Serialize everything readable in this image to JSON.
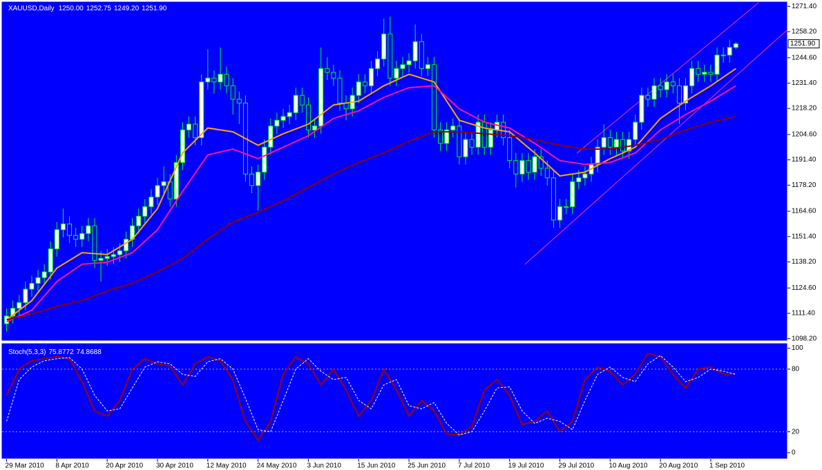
{
  "chart_data": [
    {
      "type": "candlestick",
      "title": "XAUUSD,Daily",
      "last_ohlc_labels": [
        "1250.00",
        "1252.75",
        "1249.20",
        "1251.90"
      ],
      "open": [
        1106,
        1110,
        1114,
        1117,
        1124,
        1127,
        1130,
        1133,
        1145,
        1155,
        1158,
        1152,
        1150,
        1153,
        1157,
        1139,
        1140,
        1141,
        1142,
        1144,
        1150,
        1157,
        1162,
        1167,
        1172,
        1178,
        1180,
        1171,
        1190,
        1207,
        1210,
        1203,
        1232,
        1234,
        1232,
        1236,
        1230,
        1223,
        1221,
        1184,
        1178,
        1185,
        1198,
        1209,
        1212,
        1214,
        1216,
        1225,
        1220,
        1207,
        1209,
        1239,
        1237,
        1234,
        1221,
        1218,
        1225,
        1232,
        1230,
        1239,
        1244,
        1257,
        1234,
        1239,
        1241,
        1243,
        1253,
        1239,
        1241,
        1207,
        1200,
        1207,
        1209,
        1193,
        1202,
        1198,
        1211,
        1198,
        1207,
        1211,
        1203,
        1191,
        1184,
        1191,
        1185,
        1193,
        1187,
        1182,
        1160,
        1167,
        1167,
        1180,
        1182,
        1184,
        1189,
        1198,
        1203,
        1198,
        1202,
        1196,
        1202,
        1211,
        1225,
        1223,
        1230,
        1228,
        1232,
        1230,
        1221,
        1230,
        1239,
        1236,
        1237,
        1236,
        1246,
        1246,
        1250
      ],
      "high": [
        1114,
        1118,
        1121,
        1128,
        1131,
        1134,
        1137,
        1149,
        1159,
        1166,
        1162,
        1156,
        1157,
        1161,
        1161,
        1144,
        1145,
        1146,
        1148,
        1154,
        1161,
        1166,
        1171,
        1176,
        1182,
        1188,
        1184,
        1194,
        1211,
        1214,
        1214,
        1236,
        1249,
        1238,
        1250,
        1240,
        1234,
        1227,
        1225,
        1188,
        1189,
        1202,
        1213,
        1216,
        1218,
        1220,
        1229,
        1229,
        1224,
        1213,
        1250,
        1245,
        1241,
        1238,
        1225,
        1229,
        1236,
        1236,
        1243,
        1248,
        1265,
        1266,
        1243,
        1245,
        1247,
        1262,
        1257,
        1245,
        1245,
        1211,
        1211,
        1213,
        1213,
        1206,
        1206,
        1215,
        1215,
        1211,
        1215,
        1215,
        1207,
        1195,
        1195,
        1195,
        1197,
        1197,
        1191,
        1186,
        1171,
        1171,
        1184,
        1186,
        1188,
        1193,
        1202,
        1210,
        1207,
        1206,
        1206,
        1206,
        1215,
        1229,
        1229,
        1234,
        1234,
        1236,
        1236,
        1234,
        1234,
        1243,
        1243,
        1241,
        1241,
        1250,
        1250,
        1254,
        1252.75
      ],
      "low": [
        1102,
        1106,
        1110,
        1113,
        1120,
        1123,
        1126,
        1129,
        1141,
        1151,
        1148,
        1146,
        1146,
        1149,
        1135,
        1128,
        1136,
        1137,
        1138,
        1140,
        1146,
        1153,
        1158,
        1163,
        1168,
        1174,
        1167,
        1167,
        1186,
        1203,
        1199,
        1199,
        1228,
        1226,
        1228,
        1226,
        1215,
        1210,
        1180,
        1174,
        1165,
        1181,
        1194,
        1205,
        1208,
        1210,
        1212,
        1216,
        1203,
        1203,
        1205,
        1233,
        1230,
        1217,
        1212,
        1214,
        1221,
        1226,
        1226,
        1235,
        1240,
        1230,
        1230,
        1235,
        1237,
        1239,
        1235,
        1235,
        1203,
        1196,
        1196,
        1203,
        1189,
        1189,
        1194,
        1194,
        1194,
        1194,
        1203,
        1199,
        1187,
        1177,
        1180,
        1181,
        1181,
        1183,
        1178,
        1156,
        1156,
        1163,
        1163,
        1176,
        1178,
        1180,
        1185,
        1194,
        1194,
        1194,
        1192,
        1192,
        1198,
        1207,
        1219,
        1219,
        1224,
        1224,
        1226,
        1210,
        1217,
        1226,
        1232,
        1232,
        1232,
        1232,
        1242,
        1242,
        1249.2
      ],
      "close": [
        1110,
        1114,
        1117,
        1124,
        1127,
        1130,
        1133,
        1145,
        1155,
        1158,
        1152,
        1150,
        1153,
        1157,
        1139,
        1140,
        1141,
        1142,
        1144,
        1150,
        1157,
        1162,
        1167,
        1172,
        1178,
        1180,
        1171,
        1190,
        1207,
        1210,
        1203,
        1232,
        1234,
        1232,
        1236,
        1230,
        1223,
        1221,
        1184,
        1178,
        1185,
        1198,
        1209,
        1212,
        1214,
        1216,
        1225,
        1220,
        1207,
        1209,
        1239,
        1237,
        1234,
        1221,
        1218,
        1225,
        1232,
        1230,
        1239,
        1244,
        1257,
        1234,
        1239,
        1241,
        1243,
        1253,
        1239,
        1241,
        1207,
        1200,
        1207,
        1209,
        1193,
        1202,
        1198,
        1211,
        1198,
        1207,
        1211,
        1203,
        1191,
        1184,
        1191,
        1185,
        1193,
        1187,
        1182,
        1160,
        1167,
        1167,
        1180,
        1182,
        1184,
        1189,
        1198,
        1203,
        1198,
        1202,
        1196,
        1202,
        1211,
        1225,
        1223,
        1230,
        1228,
        1232,
        1230,
        1221,
        1230,
        1239,
        1236,
        1237,
        1236,
        1246,
        1246,
        1250,
        1251.9
      ],
      "up_color": "#ffffff",
      "down_color": "#0000ff",
      "wick_color": "#00ff00",
      "overlays": [
        {
          "color": "#ffa500",
          "x": [
            0,
            4,
            8,
            12,
            16,
            20,
            24,
            28,
            32,
            36,
            40,
            44,
            48,
            52,
            56,
            60,
            64,
            68,
            72,
            76,
            80,
            84,
            88,
            92,
            96,
            100,
            104,
            108,
            112,
            116
          ],
          "values": [
            1108,
            1118,
            1135,
            1143,
            1142,
            1150,
            1166,
            1195,
            1208,
            1206,
            1199,
            1205,
            1210,
            1220,
            1222,
            1230,
            1236,
            1232,
            1212,
            1208,
            1206,
            1195,
            1183,
            1185,
            1192,
            1198,
            1213,
            1222,
            1230,
            1239
          ]
        },
        {
          "color": "#ff1493",
          "x": [
            0,
            4,
            8,
            12,
            16,
            20,
            24,
            28,
            32,
            36,
            40,
            44,
            48,
            52,
            56,
            60,
            64,
            68,
            72,
            76,
            80,
            84,
            88,
            92,
            96,
            100,
            104,
            108,
            112,
            116
          ],
          "values": [
            1107,
            1113,
            1128,
            1137,
            1138,
            1143,
            1155,
            1175,
            1194,
            1197,
            1192,
            1198,
            1204,
            1213,
            1217,
            1224,
            1229,
            1230,
            1218,
            1211,
            1208,
            1200,
            1191,
            1189,
            1190,
            1195,
            1207,
            1215,
            1222,
            1230
          ]
        },
        {
          "color": "#8b0000",
          "x": [
            0,
            4,
            8,
            12,
            16,
            20,
            24,
            28,
            32,
            36,
            40,
            44,
            48,
            52,
            56,
            60,
            64,
            68,
            72,
            76,
            80,
            84,
            88,
            92,
            96,
            100,
            104,
            108,
            112,
            116
          ],
          "values": [
            1108,
            1111,
            1115,
            1118,
            1123,
            1127,
            1133,
            1140,
            1150,
            1159,
            1164,
            1170,
            1177,
            1184,
            1190,
            1195,
            1201,
            1206,
            1206,
            1205,
            1204,
            1202,
            1199,
            1197,
            1197,
            1199,
            1202,
            1207,
            1211,
            1214
          ]
        }
      ],
      "xlim": [
        -0.5,
        124.2
      ],
      "ylim": [
        1097,
        1274
      ],
      "yticks": [
        {
          "value": 1271.4,
          "label": "1271.40"
        },
        {
          "value": 1258.2,
          "label": "1258.20"
        },
        {
          "value": 1244.6,
          "label": "1244.60"
        },
        {
          "value": 1231.4,
          "label": "1231.40"
        },
        {
          "value": 1218.2,
          "label": "1218.20"
        },
        {
          "value": 1204.6,
          "label": "1204.60"
        },
        {
          "value": 1191.4,
          "label": "1191.40"
        },
        {
          "value": 1178.2,
          "label": "1178.20"
        },
        {
          "value": 1164.6,
          "label": "1164.60"
        },
        {
          "value": 1151.4,
          "label": "1151.40"
        },
        {
          "value": 1138.2,
          "label": "1138.20"
        },
        {
          "value": 1124.6,
          "label": "1124.60"
        },
        {
          "value": 1111.4,
          "label": "1111.40"
        },
        {
          "value": 1098.2,
          "label": "1098.20"
        }
      ]
    },
    {
      "type": "line",
      "title": "Stoch(5,3,3)",
      "series": [
        {
          "color": "#a00000",
          "dash": false,
          "x": [
            0,
            2,
            4,
            6,
            8,
            10,
            12,
            14,
            16,
            18,
            20,
            22,
            24,
            26,
            28,
            30,
            32,
            34,
            36,
            38,
            40,
            42,
            44,
            46,
            48,
            50,
            52,
            54,
            56,
            58,
            60,
            62,
            64,
            66,
            68,
            70,
            72,
            74,
            76,
            78,
            80,
            82,
            84,
            86,
            88,
            90,
            92,
            94,
            96,
            98,
            100,
            102,
            104,
            106,
            108,
            110,
            112,
            114,
            116
          ],
          "values": [
            55,
            80,
            88,
            90,
            92,
            90,
            68,
            40,
            35,
            50,
            80,
            90,
            85,
            83,
            65,
            85,
            92,
            88,
            70,
            30,
            12,
            30,
            75,
            92,
            85,
            65,
            80,
            60,
            35,
            50,
            80,
            60,
            35,
            50,
            40,
            18,
            17,
            25,
            60,
            70,
            55,
            27,
            30,
            40,
            20,
            30,
            70,
            82,
            78,
            65,
            75,
            95,
            92,
            75,
            62,
            80,
            82,
            75,
            75.8772
          ]
        },
        {
          "color": "#ffffff",
          "dash": true,
          "x": [
            0,
            2,
            4,
            6,
            8,
            10,
            12,
            14,
            16,
            18,
            20,
            22,
            24,
            26,
            28,
            30,
            32,
            34,
            36,
            38,
            40,
            42,
            44,
            46,
            48,
            50,
            52,
            54,
            56,
            58,
            60,
            62,
            64,
            66,
            68,
            70,
            72,
            74,
            76,
            78,
            80,
            82,
            84,
            86,
            88,
            90,
            92,
            94,
            96,
            98,
            100,
            102,
            104,
            106,
            108,
            110,
            112,
            114,
            116
          ],
          "values": [
            30,
            70,
            82,
            88,
            90,
            91,
            80,
            55,
            40,
            42,
            62,
            82,
            87,
            85,
            75,
            73,
            87,
            90,
            80,
            52,
            22,
            20,
            50,
            80,
            90,
            78,
            70,
            72,
            50,
            42,
            65,
            70,
            45,
            42,
            48,
            28,
            17,
            20,
            40,
            62,
            63,
            40,
            28,
            33,
            30,
            22,
            50,
            75,
            82,
            72,
            68,
            85,
            93,
            82,
            68,
            72,
            80,
            78,
            74.8688
          ]
        }
      ],
      "levels": [
        80,
        20
      ],
      "xlim": [
        -0.5,
        124.2
      ],
      "ylim": [
        -6,
        105
      ],
      "yticks": [
        100,
        80,
        20,
        0
      ],
      "xticks": [
        {
          "value": 0,
          "label": "29 Mar 2010"
        },
        {
          "value": 8,
          "label": "8 Apr 2010"
        },
        {
          "value": 16,
          "label": "20 Apr 2010"
        },
        {
          "value": 24,
          "label": "30 Apr 2010"
        },
        {
          "value": 32,
          "label": "12 May 2010"
        },
        {
          "value": 40,
          "label": "24 May 2010"
        },
        {
          "value": 48,
          "label": "3 Jun 2010"
        },
        {
          "value": 56,
          "label": "15 Jun 2010"
        },
        {
          "value": 64,
          "label": "25 Jun 2010"
        },
        {
          "value": 72,
          "label": "7 Jul 2010"
        },
        {
          "value": 80,
          "label": "19 Jul 2010"
        },
        {
          "value": 88,
          "label": "29 Jul 2010"
        },
        {
          "value": 96,
          "label": "10 Aug 2010"
        },
        {
          "value": 104,
          "label": "20 Aug 2010"
        },
        {
          "value": 112,
          "label": "1 Sep 2010"
        }
      ]
    }
  ]
}
